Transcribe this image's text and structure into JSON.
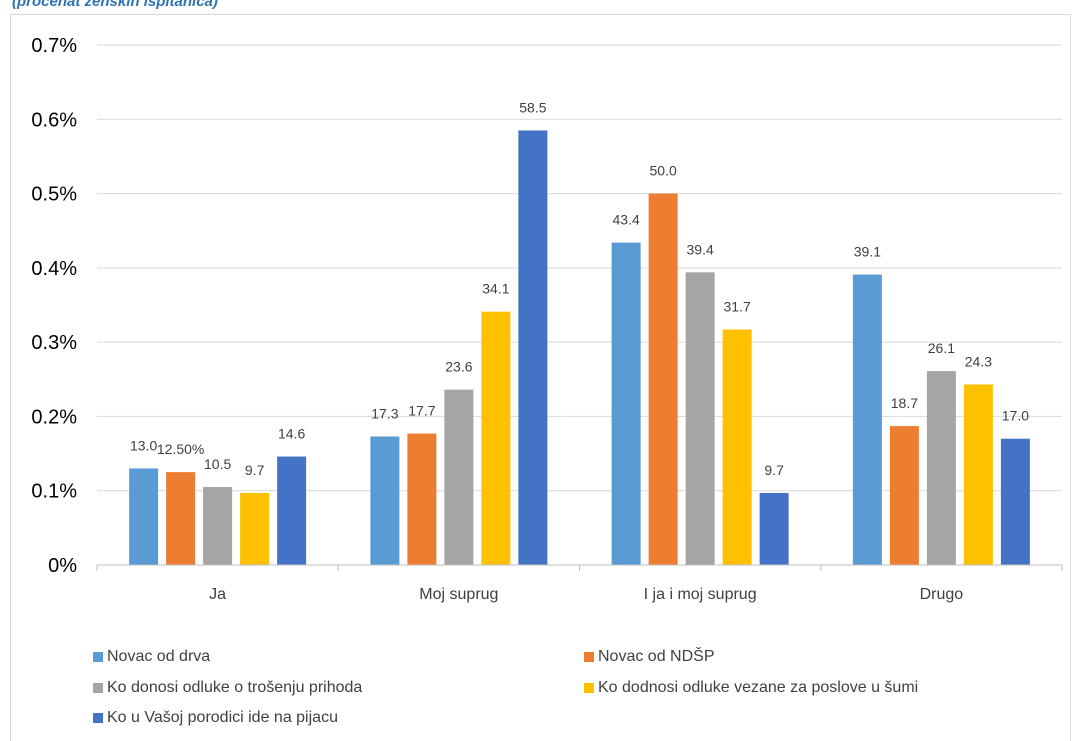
{
  "caption": "(procenat ženskih ispitanica)",
  "chart_data": {
    "type": "bar",
    "title": "",
    "xlabel": "",
    "ylabel": "",
    "categories": [
      "Ja",
      "Moj suprug",
      "I ja i moj suprug",
      "Drugo"
    ],
    "ylim": [
      0,
      0.7
    ],
    "yticks": [
      "0%",
      "0.1%",
      "0.2%",
      "0.3%",
      "0.4%",
      "0.5%",
      "0.6%",
      "0.7%"
    ],
    "grid": true,
    "legend_position": "bottom",
    "series": [
      {
        "name": "Novac od  drva",
        "color": "#5b9bd5",
        "values": [
          0.13,
          0.173,
          0.434,
          0.391
        ],
        "labels": [
          "13.0",
          "17.3",
          "43.4",
          "39.1"
        ]
      },
      {
        "name": "Novac od NDŠP",
        "color": "#ed7d31",
        "values": [
          0.125,
          0.177,
          0.5,
          0.187
        ],
        "labels": [
          "12.50%",
          "17.7",
          "50.0",
          "18.7"
        ]
      },
      {
        "name": "Ko donosi odluke o trošenju prihoda",
        "color": "#a5a5a5",
        "values": [
          0.105,
          0.236,
          0.394,
          0.261
        ],
        "labels": [
          "10.5",
          "23.6",
          "39.4",
          "26.1"
        ]
      },
      {
        "name": "Ko dodnosi odluke vezane za poslove u šumi",
        "color": "#ffc000",
        "values": [
          0.097,
          0.341,
          0.317,
          0.243
        ],
        "labels": [
          "9.7",
          "34.1",
          "31.7",
          "24.3"
        ]
      },
      {
        "name": "Ko u Vašoj porodici ide na pijacu",
        "color": "#4472c4",
        "values": [
          0.146,
          0.585,
          0.097,
          0.17
        ],
        "labels": [
          "14.6",
          "58.5",
          "9.7",
          "17.0"
        ]
      }
    ]
  }
}
